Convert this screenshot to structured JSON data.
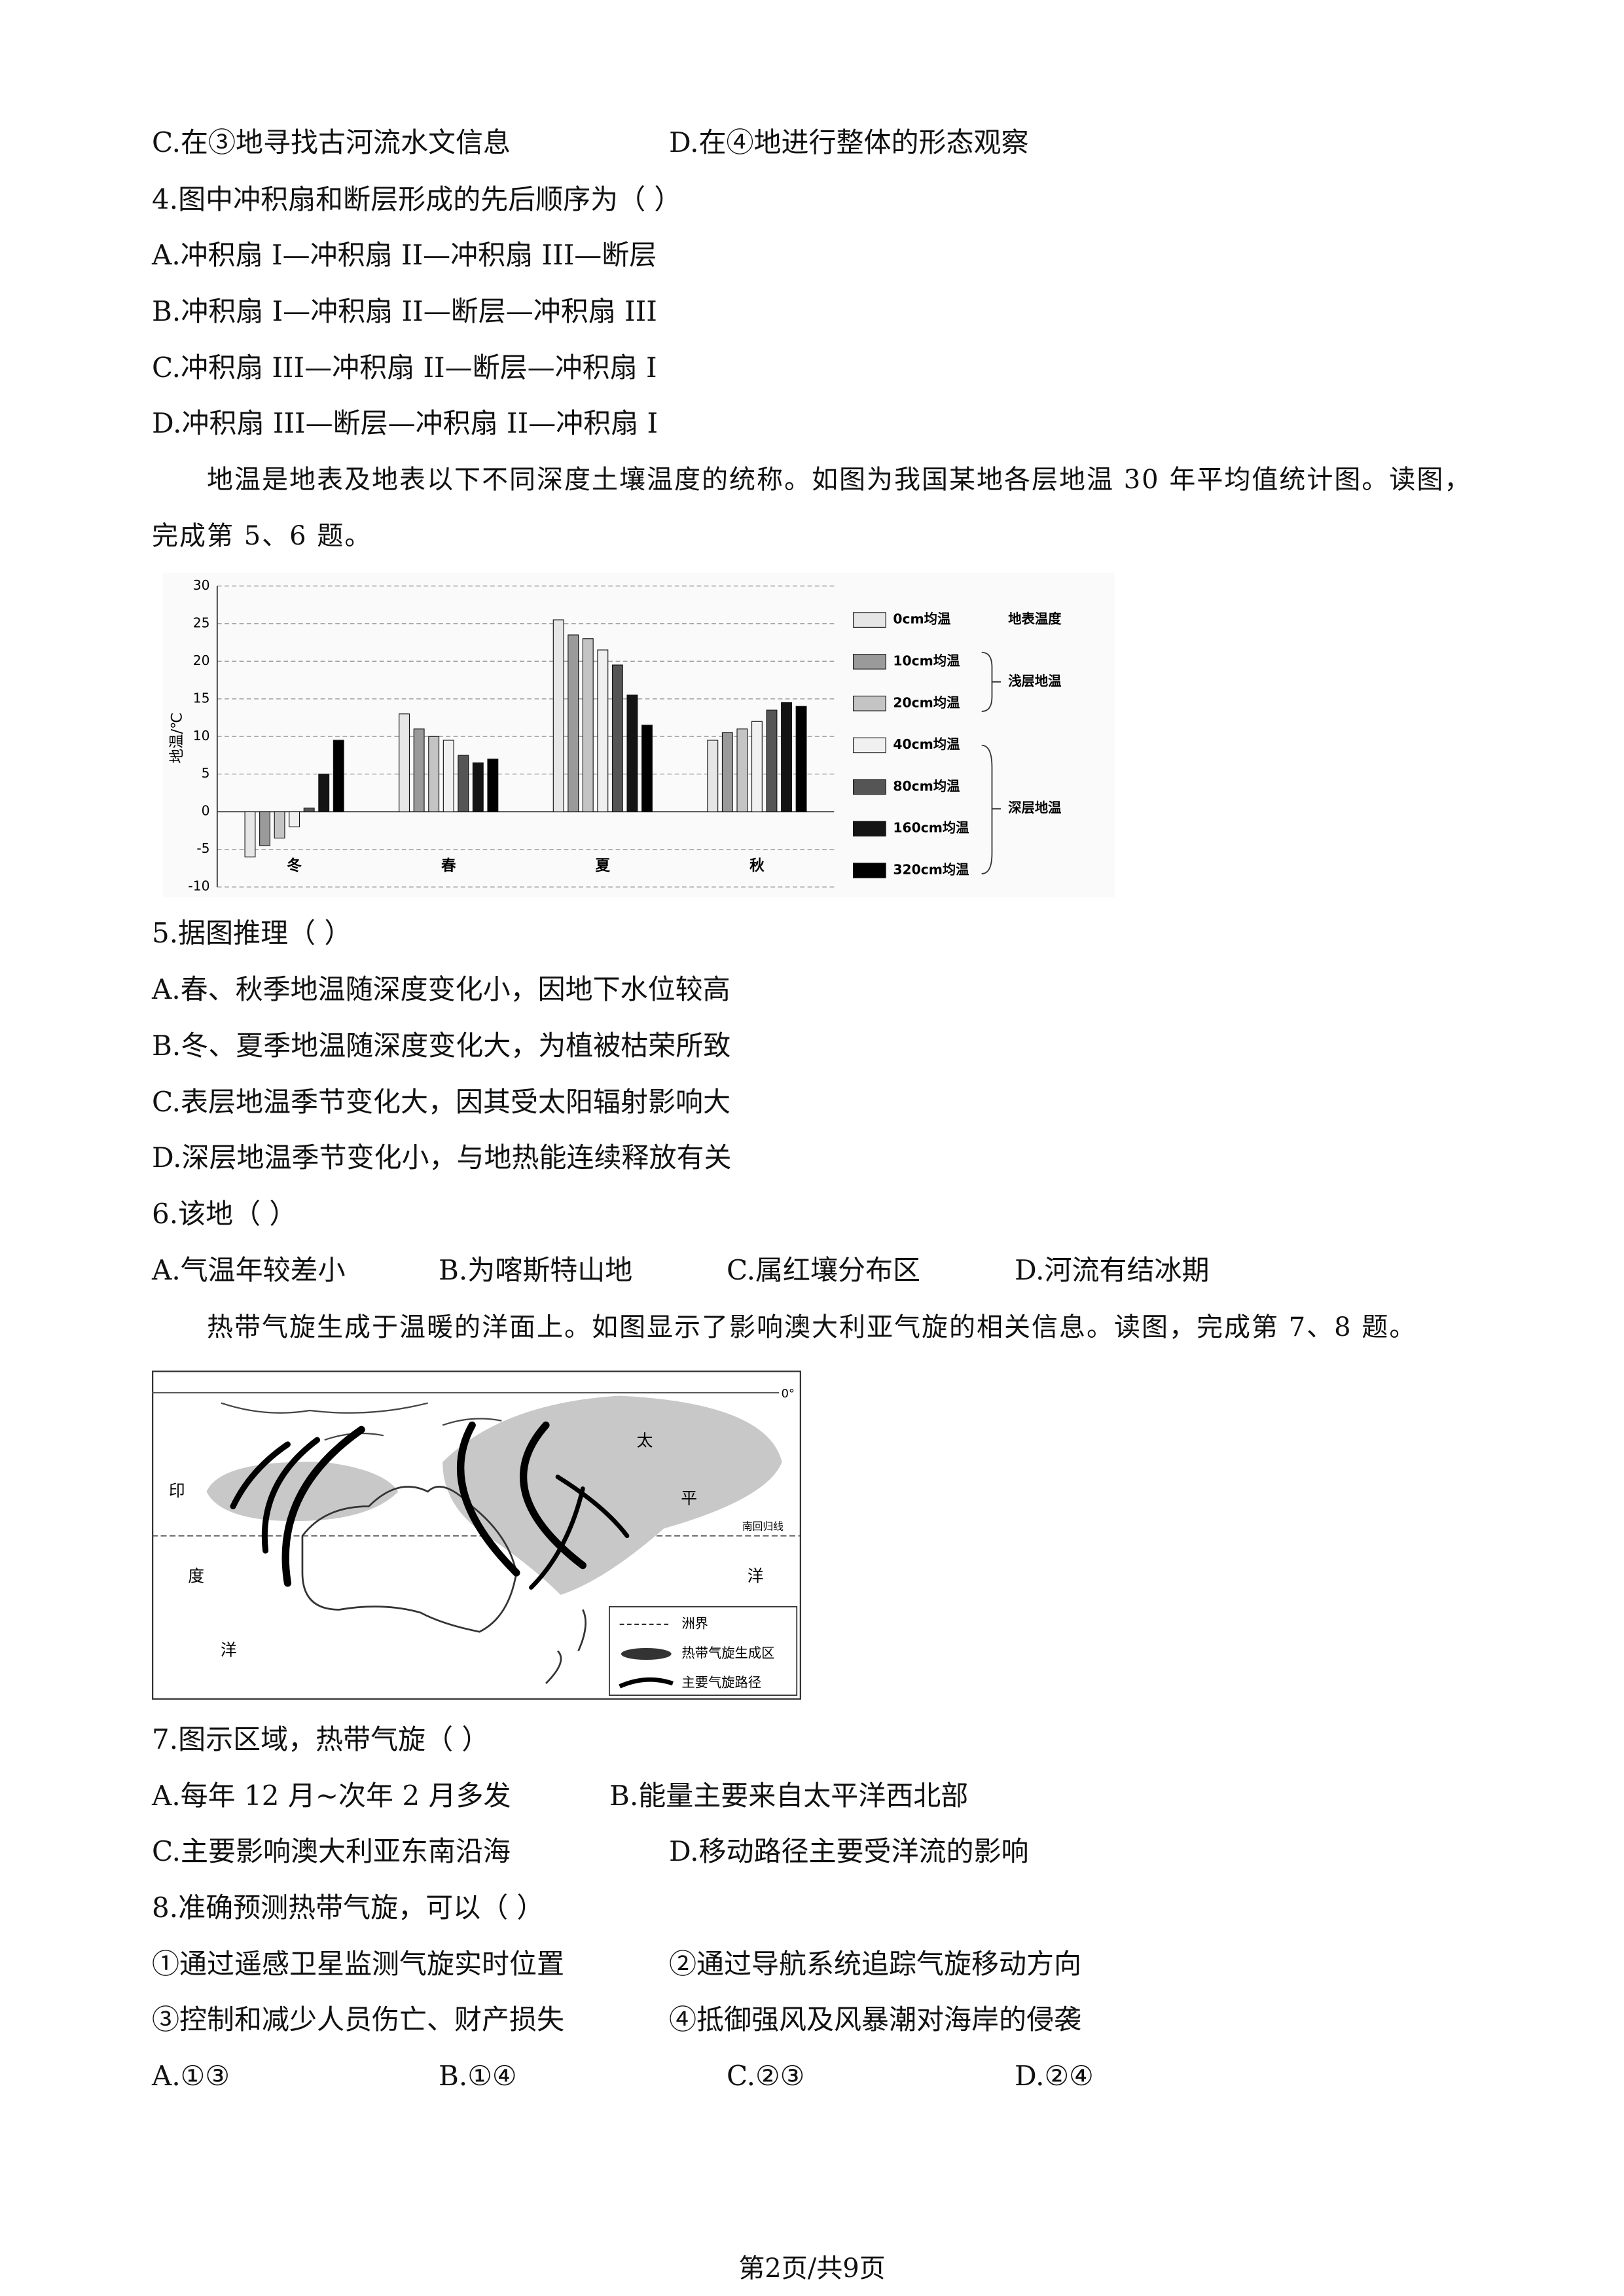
{
  "q3_options": [
    "C.在③地寻找古河流水文信息",
    "D.在④地进行整体的形态观察"
  ],
  "q4": {
    "stem": "4.图中冲积扇和断层形成的先后顺序为（    ）",
    "options": [
      "A.冲积扇 I—冲积扇 II—冲积扇 III—断层",
      "B.冲积扇 I—冲积扇 II—断层—冲积扇 III",
      "C.冲积扇 III—冲积扇 II—断层—冲积扇 I",
      "D.冲积扇 III—断层—冲积扇 II—冲积扇 I"
    ]
  },
  "intro_5_6": "地温是地表及地表以下不同深度土壤温度的统称。如图为我国某地各层地温 30 年平均值统计图。读图，完成第 5、6 题。",
  "chart_data": {
    "type": "bar",
    "y_label": "地温/℃",
    "categories": [
      "冬",
      "春",
      "夏",
      "秋"
    ],
    "series": [
      {
        "name": "0cm均温",
        "color": "#e6e6e6",
        "values": [
          -6,
          13,
          25.5,
          9.5
        ]
      },
      {
        "name": "10cm均温",
        "color": "#9a9a9a",
        "values": [
          -4.5,
          11,
          23.5,
          10.5
        ]
      },
      {
        "name": "20cm均温",
        "color": "#c4c4c4",
        "values": [
          -3.5,
          10,
          23,
          11
        ]
      },
      {
        "name": "40cm均温",
        "color": "#f0f0f0",
        "values": [
          -2,
          9.5,
          21.5,
          12
        ]
      },
      {
        "name": "80cm均温",
        "color": "#555555",
        "values": [
          0.5,
          7.5,
          19.5,
          13.5
        ]
      },
      {
        "name": "160cm均温",
        "color": "#141414",
        "values": [
          5,
          6.5,
          15.5,
          14.5
        ]
      },
      {
        "name": "320cm均温",
        "color": "#000000",
        "values": [
          9.5,
          7,
          11.5,
          14
        ]
      }
    ],
    "group_labels": [
      "地表温度",
      "浅层地温",
      "深层地温"
    ],
    "ylim": [
      -10,
      30
    ],
    "yticks": [
      -10,
      -5,
      0,
      5,
      10,
      15,
      20,
      25,
      30
    ],
    "grid": true
  },
  "q5": {
    "stem": "5.据图推理（    ）",
    "options": [
      "A.春、秋季地温随深度变化小，因地下水位较高",
      "B.冬、夏季地温随深度变化大，为植被枯荣所致",
      "C.表层地温季节变化大，因其受太阳辐射影响大",
      "D.深层地温季节变化小，与地热能连续释放有关"
    ]
  },
  "q6": {
    "stem": "6.该地（    ）",
    "options": [
      "A.气温年较差小",
      "B.为喀斯特山地",
      "C.属红壤分布区",
      "D.河流有结冰期"
    ]
  },
  "intro_7_8": "热带气旋生成于温暖的洋面上。如图显示了影响澳大利亚气旋的相关信息。读图，完成第 7、8 题。",
  "map": {
    "labels": [
      "印",
      "度",
      "洋",
      "太",
      "平",
      "洋",
      "南回归线",
      "0°"
    ],
    "legend": [
      "洲界",
      "热带气旋生成区",
      "主要气旋路径"
    ]
  },
  "q7": {
    "stem": "7.图示区域，热带气旋（    ）",
    "options": [
      "A.每年 12 月~次年 2 月多发",
      "B.能量主要来自太平洋西北部",
      "C.主要影响澳大利亚东南沿海",
      "D.移动路径主要受洋流的影响"
    ]
  },
  "q8": {
    "stem": "8.准确预测热带气旋，可以（    ）",
    "items": [
      "①通过遥感卫星监测气旋实时位置",
      "②通过导航系统追踪气旋移动方向",
      "③控制和减少人员伤亡、财产损失",
      "④抵御强风及风暴潮对海岸的侵袭"
    ],
    "options": [
      "A.①③",
      "B.①④",
      "C.②③",
      "D.②④"
    ]
  },
  "footer": "第2页/共9页"
}
